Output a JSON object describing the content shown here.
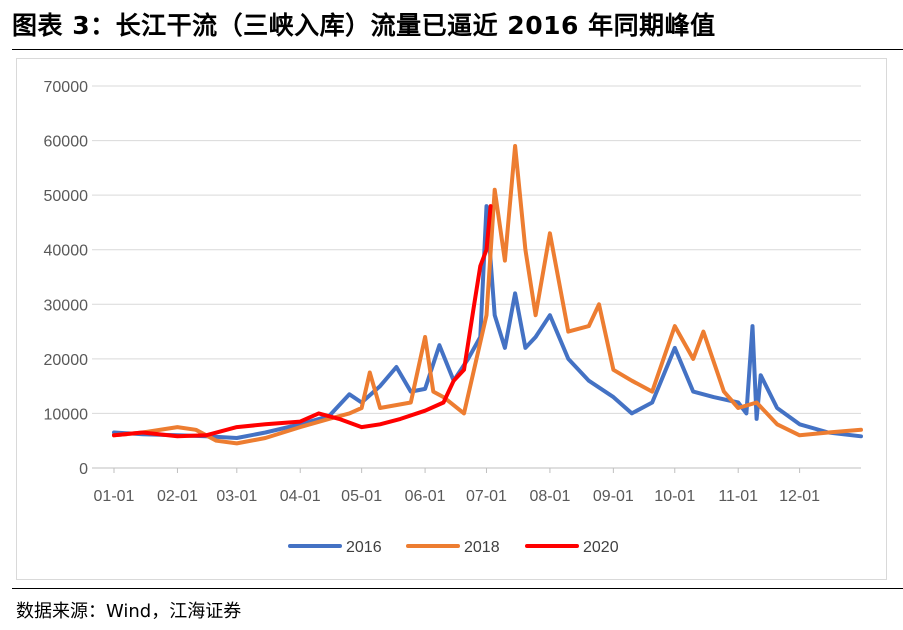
{
  "title": "图表 3：长江干流（三峡入库）流量已逼近 2016 年同期峰值",
  "source": "数据来源：Wind，江海证券",
  "chart_data": {
    "type": "line",
    "xlabel": "",
    "ylabel": "",
    "ylim": [
      0,
      70000
    ],
    "yticks": [
      "0",
      "10000",
      "20000",
      "30000",
      "40000",
      "50000",
      "60000",
      "70000"
    ],
    "xticks": [
      "01-01",
      "02-01",
      "03-01",
      "04-01",
      "05-01",
      "06-01",
      "07-01",
      "08-01",
      "09-01",
      "10-01",
      "11-01",
      "12-01"
    ],
    "grid": "horizontal",
    "legend": "bottom-center",
    "series": [
      {
        "name": "2016",
        "color": "#4472C4",
        "points": [
          [
            "01-01",
            6500
          ],
          [
            "01-15",
            6200
          ],
          [
            "02-01",
            6000
          ],
          [
            "02-15",
            5800
          ],
          [
            "03-01",
            5500
          ],
          [
            "03-15",
            6500
          ],
          [
            "04-01",
            8000
          ],
          [
            "04-15",
            9500
          ],
          [
            "04-25",
            13500
          ],
          [
            "05-01",
            12000
          ],
          [
            "05-10",
            15000
          ],
          [
            "05-18",
            18500
          ],
          [
            "05-25",
            14000
          ],
          [
            "06-01",
            14500
          ],
          [
            "06-08",
            22500
          ],
          [
            "06-15",
            16000
          ],
          [
            "06-22",
            20000
          ],
          [
            "06-28",
            24000
          ],
          [
            "07-01",
            48000
          ],
          [
            "07-05",
            28000
          ],
          [
            "07-10",
            22000
          ],
          [
            "07-15",
            32000
          ],
          [
            "07-20",
            22000
          ],
          [
            "07-25",
            24000
          ],
          [
            "08-01",
            28000
          ],
          [
            "08-10",
            20000
          ],
          [
            "08-20",
            16000
          ],
          [
            "09-01",
            13000
          ],
          [
            "09-10",
            10000
          ],
          [
            "09-20",
            12000
          ],
          [
            "10-01",
            22000
          ],
          [
            "10-10",
            14000
          ],
          [
            "10-20",
            13000
          ],
          [
            "11-01",
            12000
          ],
          [
            "11-05",
            10000
          ],
          [
            "11-08",
            26000
          ],
          [
            "11-10",
            9000
          ],
          [
            "11-12",
            17000
          ],
          [
            "11-20",
            11000
          ],
          [
            "12-01",
            8000
          ],
          [
            "12-15",
            6500
          ],
          [
            "12-31",
            5800
          ]
        ]
      },
      {
        "name": "2018",
        "color": "#ED7D31",
        "points": [
          [
            "01-01",
            6000
          ],
          [
            "01-15",
            6500
          ],
          [
            "02-01",
            7500
          ],
          [
            "02-10",
            7000
          ],
          [
            "02-20",
            5000
          ],
          [
            "03-01",
            4500
          ],
          [
            "03-15",
            5500
          ],
          [
            "04-01",
            7500
          ],
          [
            "04-15",
            9000
          ],
          [
            "04-25",
            10000
          ],
          [
            "05-01",
            11000
          ],
          [
            "05-05",
            17500
          ],
          [
            "05-10",
            11000
          ],
          [
            "05-25",
            12000
          ],
          [
            "06-01",
            24000
          ],
          [
            "06-05",
            14000
          ],
          [
            "06-10",
            13000
          ],
          [
            "06-20",
            10000
          ],
          [
            "07-01",
            28000
          ],
          [
            "07-05",
            51000
          ],
          [
            "07-10",
            38000
          ],
          [
            "07-15",
            59000
          ],
          [
            "07-20",
            40000
          ],
          [
            "07-25",
            28000
          ],
          [
            "08-01",
            43000
          ],
          [
            "08-10",
            25000
          ],
          [
            "08-20",
            26000
          ],
          [
            "08-25",
            30000
          ],
          [
            "09-01",
            18000
          ],
          [
            "09-10",
            16000
          ],
          [
            "09-20",
            14000
          ],
          [
            "10-01",
            26000
          ],
          [
            "10-10",
            20000
          ],
          [
            "10-15",
            25000
          ],
          [
            "10-25",
            14000
          ],
          [
            "11-01",
            11000
          ],
          [
            "11-10",
            12000
          ],
          [
            "11-20",
            8000
          ],
          [
            "12-01",
            6000
          ],
          [
            "12-15",
            6500
          ],
          [
            "12-31",
            7000
          ]
        ]
      },
      {
        "name": "2020",
        "color": "#FF0000",
        "points": [
          [
            "01-01",
            6000
          ],
          [
            "01-15",
            6500
          ],
          [
            "02-01",
            5800
          ],
          [
            "02-15",
            6000
          ],
          [
            "03-01",
            7500
          ],
          [
            "03-15",
            8000
          ],
          [
            "04-01",
            8500
          ],
          [
            "04-10",
            10000
          ],
          [
            "04-20",
            9000
          ],
          [
            "05-01",
            7500
          ],
          [
            "05-10",
            8000
          ],
          [
            "05-20",
            9000
          ],
          [
            "06-01",
            10500
          ],
          [
            "06-10",
            12000
          ],
          [
            "06-15",
            16000
          ],
          [
            "06-20",
            18000
          ],
          [
            "06-25",
            30000
          ],
          [
            "06-28",
            37000
          ],
          [
            "07-01",
            40000
          ],
          [
            "07-03",
            48000
          ]
        ]
      }
    ]
  }
}
